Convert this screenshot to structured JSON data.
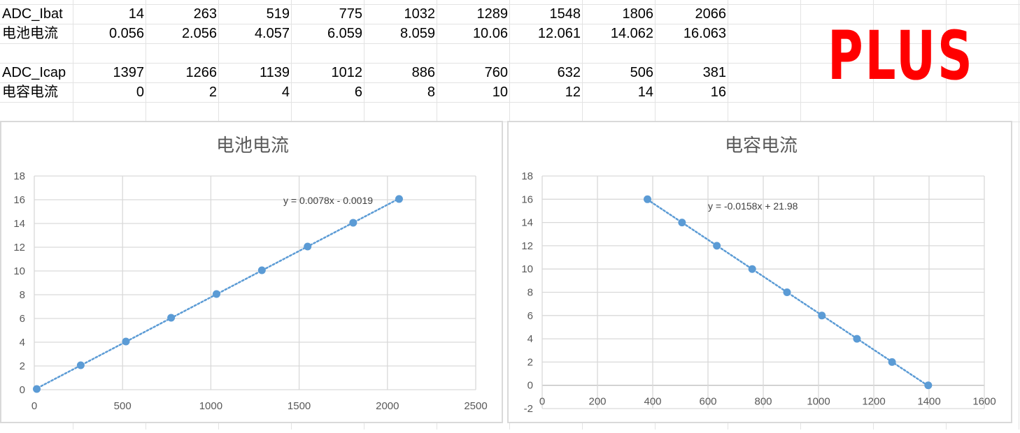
{
  "sheet": {
    "rows": [
      {
        "label": "ADC_Ibat",
        "values": [
          "14",
          "263",
          "519",
          "775",
          "1032",
          "1289",
          "1548",
          "1806",
          "2066"
        ]
      },
      {
        "label": "电池电流",
        "values": [
          "0.056",
          "2.056",
          "4.057",
          "6.059",
          "8.059",
          "10.06",
          "12.061",
          "14.062",
          "16.063"
        ]
      },
      {
        "label": "",
        "values": []
      },
      {
        "label": "ADC_Icap",
        "values": [
          "1397",
          "1266",
          "1139",
          "1012",
          "886",
          "760",
          "632",
          "506",
          "381"
        ]
      },
      {
        "label": "电容电流",
        "values": [
          "0",
          "2",
          "4",
          "6",
          "8",
          "10",
          "12",
          "14",
          "16"
        ]
      }
    ]
  },
  "logo_text": "PLUS",
  "colors": {
    "series": "#5b9bd5",
    "grid": "#d9d9d9",
    "logo": "#ff0000",
    "axis_text": "#595959"
  },
  "chart_data": [
    {
      "type": "scatter",
      "title": "电池电流",
      "x": [
        14,
        263,
        519,
        775,
        1032,
        1289,
        1548,
        1806,
        2066
      ],
      "y": [
        0.056,
        2.056,
        4.057,
        6.059,
        8.059,
        10.06,
        12.061,
        14.062,
        16.063
      ],
      "xlim": [
        0,
        2500
      ],
      "ylim": [
        0,
        18
      ],
      "xticks": [
        0,
        500,
        1000,
        1500,
        2000,
        2500
      ],
      "yticks": [
        0,
        2,
        4,
        6,
        8,
        10,
        12,
        14,
        16,
        18
      ],
      "trendline": {
        "type": "linear",
        "equation": "y = 0.0078x - 0.0019"
      },
      "grid": true
    },
    {
      "type": "scatter",
      "title": "电容电流",
      "x": [
        1397,
        1266,
        1139,
        1012,
        886,
        760,
        632,
        506,
        381
      ],
      "y": [
        0,
        2,
        4,
        6,
        8,
        10,
        12,
        14,
        16
      ],
      "xlim": [
        0,
        1600
      ],
      "ylim": [
        -2,
        18
      ],
      "xticks": [
        0,
        200,
        400,
        600,
        800,
        1000,
        1200,
        1400,
        1600
      ],
      "yticks": [
        -2,
        0,
        2,
        4,
        6,
        8,
        10,
        12,
        14,
        16,
        18
      ],
      "trendline": {
        "type": "linear",
        "equation": "y = -0.0158x + 21.98"
      },
      "grid": true
    }
  ]
}
